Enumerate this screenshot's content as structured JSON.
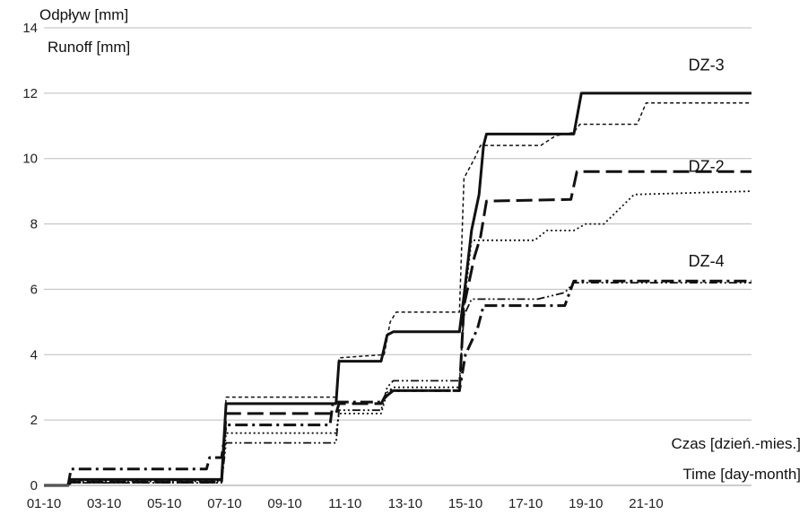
{
  "chart_data": {
    "type": "line",
    "ylabel_line1": "Odpływ [mm]",
    "ylabel_line2": "Runoff [mm]",
    "xlabel_line1": "Czas [dzień.-mies.]",
    "xlabel_line2": "Time [day-month]",
    "x_ticks": [
      "01-10",
      "03-10",
      "05-10",
      "07-10",
      "09-10",
      "11-10",
      "13-10",
      "15-10",
      "17-10",
      "19-10",
      "21-10"
    ],
    "y_ticks": [
      0,
      2,
      4,
      6,
      8,
      10,
      12,
      14
    ],
    "xlim": [
      1,
      24.5
    ],
    "ylim": [
      0,
      14
    ],
    "grid": "horizontal",
    "annotations": [
      {
        "text": "DZ-3",
        "x": 23,
        "y": 12.7
      },
      {
        "text": "DZ-2",
        "x": 23,
        "y": 9.6
      },
      {
        "text": "DZ-4",
        "x": 23,
        "y": 6.7
      }
    ],
    "series": [
      {
        "style": "solid",
        "width": 3,
        "dash": "",
        "points": [
          [
            1,
            0
          ],
          [
            1.8,
            0
          ],
          [
            1.9,
            0.18
          ],
          [
            6.9,
            0.18
          ],
          [
            7.05,
            2.5
          ],
          [
            10.7,
            2.5
          ],
          [
            10.8,
            3.8
          ],
          [
            12.2,
            3.8
          ],
          [
            12.4,
            4.6
          ],
          [
            12.6,
            4.7
          ],
          [
            14.8,
            4.7
          ],
          [
            14.95,
            5.8
          ],
          [
            15.2,
            7.8
          ],
          [
            15.45,
            8.9
          ],
          [
            15.6,
            10.4
          ],
          [
            15.7,
            10.75
          ],
          [
            18.6,
            10.75
          ],
          [
            18.85,
            12.0
          ],
          [
            24.5,
            12.0
          ]
        ]
      },
      {
        "style": "dashed-fine",
        "width": 1.5,
        "dash": "4,3",
        "points": [
          [
            1,
            0
          ],
          [
            1.8,
            0
          ],
          [
            1.9,
            0.15
          ],
          [
            6.9,
            0.15
          ],
          [
            7.05,
            2.7
          ],
          [
            10.7,
            2.7
          ],
          [
            10.8,
            3.9
          ],
          [
            12.3,
            4.0
          ],
          [
            12.5,
            5.0
          ],
          [
            12.7,
            5.3
          ],
          [
            14.8,
            5.3
          ],
          [
            14.95,
            9.4
          ],
          [
            15.3,
            10.0
          ],
          [
            15.5,
            10.4
          ],
          [
            17.5,
            10.4
          ],
          [
            18.0,
            10.7
          ],
          [
            18.6,
            10.8
          ],
          [
            18.8,
            11.05
          ],
          [
            20.7,
            11.05
          ],
          [
            21.0,
            11.7
          ],
          [
            24.5,
            11.7
          ]
        ]
      },
      {
        "style": "long-dash",
        "width": 3,
        "dash": "18,7",
        "points": [
          [
            1,
            0
          ],
          [
            1.8,
            0
          ],
          [
            1.9,
            0.1
          ],
          [
            6.9,
            0.1
          ],
          [
            7.05,
            2.2
          ],
          [
            10.7,
            2.2
          ],
          [
            10.8,
            2.5
          ],
          [
            12.2,
            2.5
          ],
          [
            12.4,
            2.85
          ],
          [
            12.6,
            2.9
          ],
          [
            14.8,
            2.9
          ],
          [
            14.95,
            5.5
          ],
          [
            15.3,
            7.0
          ],
          [
            15.5,
            7.6
          ],
          [
            15.7,
            8.7
          ],
          [
            18.5,
            8.75
          ],
          [
            18.7,
            9.6
          ],
          [
            24.5,
            9.6
          ]
        ]
      },
      {
        "style": "dotted",
        "width": 1.8,
        "dash": "2,3",
        "points": [
          [
            1,
            0
          ],
          [
            1.8,
            0
          ],
          [
            1.9,
            0.12
          ],
          [
            6.9,
            0.12
          ],
          [
            7.05,
            1.6
          ],
          [
            10.7,
            1.6
          ],
          [
            10.8,
            2.2
          ],
          [
            12.2,
            2.2
          ],
          [
            12.4,
            2.85
          ],
          [
            12.6,
            3.0
          ],
          [
            14.8,
            3.0
          ],
          [
            14.95,
            5.5
          ],
          [
            15.2,
            7.5
          ],
          [
            17.3,
            7.5
          ],
          [
            17.7,
            7.8
          ],
          [
            18.6,
            7.8
          ],
          [
            19.0,
            8.0
          ],
          [
            19.6,
            8.0
          ],
          [
            20.6,
            8.9
          ],
          [
            24.5,
            9.0
          ]
        ]
      },
      {
        "style": "dash-dot",
        "width": 3,
        "dash": "14,5,3,5",
        "points": [
          [
            1,
            0
          ],
          [
            1.8,
            0
          ],
          [
            1.9,
            0.5
          ],
          [
            6.4,
            0.5
          ],
          [
            6.5,
            0.85
          ],
          [
            6.9,
            0.85
          ],
          [
            7.05,
            1.85
          ],
          [
            10.5,
            1.85
          ],
          [
            10.6,
            2.55
          ],
          [
            12.2,
            2.55
          ],
          [
            12.4,
            2.75
          ],
          [
            12.6,
            2.9
          ],
          [
            14.8,
            2.9
          ],
          [
            15.0,
            4.0
          ],
          [
            15.4,
            4.8
          ],
          [
            15.6,
            5.5
          ],
          [
            18.3,
            5.5
          ],
          [
            18.6,
            6.25
          ],
          [
            24.5,
            6.25
          ]
        ]
      },
      {
        "style": "dash-dot-dot",
        "width": 1.8,
        "dash": "9,3,2,3,2,3",
        "points": [
          [
            1,
            0
          ],
          [
            1.8,
            0
          ],
          [
            1.9,
            0.08
          ],
          [
            6.9,
            0.08
          ],
          [
            7.05,
            1.3
          ],
          [
            10.7,
            1.3
          ],
          [
            10.8,
            2.3
          ],
          [
            12.2,
            2.3
          ],
          [
            12.4,
            3.0
          ],
          [
            12.6,
            3.2
          ],
          [
            14.8,
            3.2
          ],
          [
            14.95,
            5.2
          ],
          [
            15.2,
            5.7
          ],
          [
            17.4,
            5.7
          ],
          [
            18.3,
            5.9
          ],
          [
            18.6,
            6.2
          ],
          [
            24.5,
            6.2
          ]
        ]
      }
    ]
  }
}
